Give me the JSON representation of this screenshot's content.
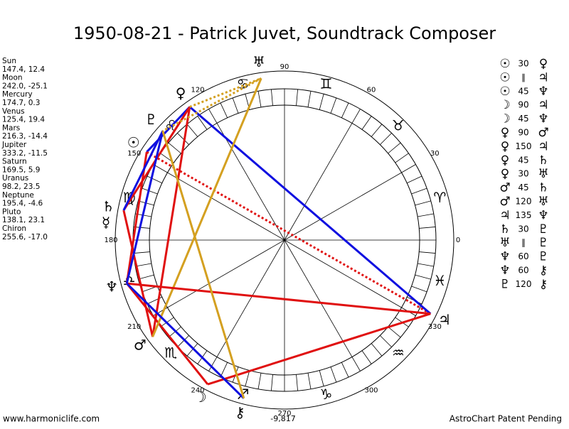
{
  "title": "1950-08-21 - Patrick Juvet, Soundtrack Composer",
  "planets": [
    {
      "name": "Sun",
      "glyph": "☉",
      "coords": "147.4, 12.4"
    },
    {
      "name": "Moon",
      "glyph": "☽",
      "coords": "242.0, -25.1"
    },
    {
      "name": "Mercury",
      "glyph": "☿",
      "coords": "174.7, 0.3"
    },
    {
      "name": "Venus",
      "glyph": "♀",
      "coords": "125.4, 19.4"
    },
    {
      "name": "Mars",
      "glyph": "♂",
      "coords": "216.3, -14.4"
    },
    {
      "name": "Jupiter",
      "glyph": "♃",
      "coords": "333.2, -11.5"
    },
    {
      "name": "Saturn",
      "glyph": "♄",
      "coords": "169.5, 5.9"
    },
    {
      "name": "Uranus",
      "glyph": "♅",
      "coords": "98.2, 23.5"
    },
    {
      "name": "Neptune",
      "glyph": "♆",
      "coords": "195.4, -4.6"
    },
    {
      "name": "Pluto",
      "glyph": "♇",
      "coords": "138.1, 23.1"
    },
    {
      "name": "Chiron",
      "glyph": "⚷",
      "coords": "255.6, -17.0"
    }
  ],
  "signs": [
    "♈",
    "♉",
    "♊",
    "♋",
    "♌",
    "♍",
    "♎",
    "♏",
    "♐",
    "♑",
    "♒",
    "♓"
  ],
  "degree_labels": [
    0,
    30,
    60,
    90,
    120,
    150,
    180,
    210,
    240,
    270,
    300,
    330
  ],
  "aspects": [
    {
      "p1": "☉",
      "aspect": "30",
      "p2": "♀",
      "color": "#1010e0",
      "dotted": false
    },
    {
      "p1": "☉",
      "aspect": "∥",
      "p2": "♃",
      "color": "#e01010",
      "dotted": true
    },
    {
      "p1": "☉",
      "aspect": "45",
      "p2": "♆",
      "color": "#e01010",
      "dotted": false
    },
    {
      "p1": "☽",
      "aspect": "90",
      "p2": "♃",
      "color": "#e01010",
      "dotted": false
    },
    {
      "p1": "☽",
      "aspect": "45",
      "p2": "♆",
      "color": "#e01010",
      "dotted": false
    },
    {
      "p1": "♀",
      "aspect": "90",
      "p2": "♂",
      "color": "#e01010",
      "dotted": false
    },
    {
      "p1": "♀",
      "aspect": "150",
      "p2": "♃",
      "color": "#1010e0",
      "dotted": false
    },
    {
      "p1": "♀",
      "aspect": "45",
      "p2": "♄",
      "color": "#e01010",
      "dotted": false
    },
    {
      "p1": "♀",
      "aspect": "30",
      "p2": "♅",
      "color": "#d4a020",
      "dotted": true
    },
    {
      "p1": "♂",
      "aspect": "45",
      "p2": "♄",
      "color": "#e01010",
      "dotted": false
    },
    {
      "p1": "♂",
      "aspect": "120",
      "p2": "♅",
      "color": "#d4a020",
      "dotted": false
    },
    {
      "p1": "♃",
      "aspect": "135",
      "p2": "♆",
      "color": "#e01010",
      "dotted": false
    },
    {
      "p1": "♄",
      "aspect": "30",
      "p2": "♇",
      "color": "#1010e0",
      "dotted": false
    },
    {
      "p1": "♅",
      "aspect": "∥",
      "p2": "♇",
      "color": "#d4a020",
      "dotted": true
    },
    {
      "p1": "♆",
      "aspect": "60",
      "p2": "♇",
      "color": "#1010e0",
      "dotted": false
    },
    {
      "p1": "♆",
      "aspect": "60",
      "p2": "⚷",
      "color": "#1010e0",
      "dotted": false
    },
    {
      "p1": "♇",
      "aspect": "120",
      "p2": "⚷",
      "color": "#d4a020",
      "dotted": false
    }
  ],
  "bottom_note": "-9,817",
  "footer_left": "www.harmoniclife.com",
  "footer_right": "AstroChart Patent Pending"
}
